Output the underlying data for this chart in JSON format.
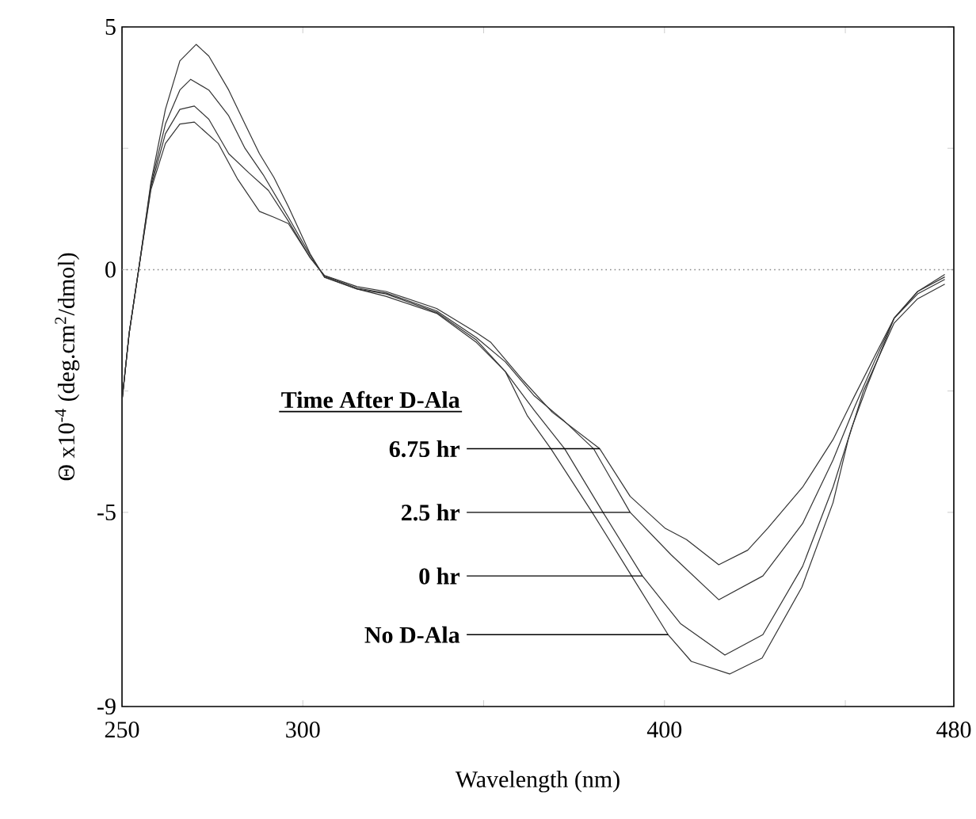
{
  "chart_data": {
    "type": "line",
    "xlabel": "Wavelength (nm)",
    "ylabel": "Θ x10$^{-4}$ (deg.cm$^{2}$/dmol)",
    "legend_title": "Time After D-Ala",
    "xlim": [
      250,
      480
    ],
    "ylim": [
      -9,
      5
    ],
    "xticks": [
      250,
      300,
      {
        "value": 350,
        "label": null
      },
      400,
      {
        "value": 450,
        "label": null
      },
      480
    ],
    "yticks": [
      5,
      {
        "value": 2.5,
        "label": null
      },
      0,
      {
        "value": -2.5,
        "label": null
      },
      -5,
      -9
    ],
    "grid": false,
    "marker": "none",
    "line_style": "solid",
    "ref_lines": [
      {
        "axis": "y",
        "value": 0,
        "color": "#888888",
        "line_style": "dotted"
      }
    ],
    "annotations": [
      {
        "text": "6.75  hr",
        "x": 382.1,
        "y": -3.69
      },
      {
        "text": "2.5  hr",
        "x": 390.5,
        "y": -5.0
      },
      {
        "text": "0  hr",
        "x": 393.9,
        "y": -6.31
      },
      {
        "text": "No  D-Ala",
        "x": 401,
        "y": -7.52
      }
    ],
    "series": [
      {
        "color": "#333333",
        "x": [
          250,
          252,
          254.6,
          258,
          262,
          266,
          270.5,
          274,
          279.5,
          284,
          288,
          292,
          296,
          302,
          306,
          315,
          323,
          337,
          348,
          356,
          362,
          368.6,
          380,
          390,
          401,
          407.4,
          418,
          427,
          438,
          446.6,
          450.8,
          455,
          463.5,
          470,
          477.5
        ],
        "values": [
          -2.7,
          -1.3,
          0,
          1.8,
          3.3,
          4.3,
          4.64,
          4.4,
          3.7,
          3.0,
          2.39,
          1.9,
          1.3,
          0.33,
          -0.16,
          -0.4,
          -0.55,
          -0.9,
          -1.5,
          -2.1,
          -3.0,
          -3.69,
          -5.0,
          -6.2,
          -7.52,
          -8.07,
          -8.33,
          -8.0,
          -6.54,
          -4.8,
          -3.5,
          -2.5,
          -1.1,
          -0.6,
          -0.3
        ]
      },
      {
        "color": "#333333",
        "x": [
          250,
          252,
          254.6,
          258,
          262,
          266,
          269,
          274,
          279.5,
          284,
          289,
          296,
          302,
          306,
          315,
          323,
          337,
          348,
          356,
          364,
          372.4,
          383,
          393.9,
          404.4,
          416.7,
          427.2,
          438.2,
          446.6,
          451.7,
          456,
          463.5,
          470,
          477.5
        ],
        "values": [
          -2.7,
          -1.3,
          0,
          1.75,
          3.0,
          3.7,
          3.92,
          3.7,
          3.17,
          2.5,
          1.96,
          1.08,
          0.3,
          -0.15,
          -0.4,
          -0.5,
          -0.88,
          -1.45,
          -2.1,
          -2.9,
          -3.69,
          -5.0,
          -6.31,
          -7.29,
          -7.94,
          -7.52,
          -6.11,
          -4.48,
          -3.27,
          -2.4,
          -1.0,
          -0.5,
          -0.2
        ]
      },
      {
        "color": "#333333",
        "x": [
          250,
          252,
          254.6,
          258,
          262,
          266,
          270,
          274,
          279.5,
          285,
          290.5,
          296,
          302,
          306,
          315,
          323,
          337,
          348,
          356,
          364,
          372,
          380.4,
          390.5,
          401.9,
          415,
          427.2,
          438.2,
          446.6,
          452.5,
          458,
          463.5,
          470,
          477.5
        ],
        "values": [
          -2.7,
          -1.3,
          0,
          1.7,
          2.8,
          3.3,
          3.37,
          3.1,
          2.39,
          2.0,
          1.63,
          1.0,
          0.25,
          -0.13,
          -0.38,
          -0.48,
          -0.85,
          -1.4,
          -1.9,
          -2.6,
          -3.1,
          -3.69,
          -5.0,
          -5.88,
          -6.8,
          -6.31,
          -5.23,
          -3.92,
          -2.84,
          -1.9,
          -1.0,
          -0.45,
          -0.15
        ]
      },
      {
        "color": "#333333",
        "x": [
          250,
          252,
          254.6,
          258,
          262,
          266,
          270,
          276.6,
          282,
          288,
          292,
          296,
          302,
          306,
          315,
          323,
          337,
          348,
          352,
          361,
          369,
          382.1,
          390.5,
          400.2,
          406.1,
          415,
          423,
          428.5,
          438.2,
          446.6,
          452.5,
          458,
          463.5,
          470,
          477.5
        ],
        "values": [
          -2.7,
          -1.3,
          0,
          1.65,
          2.6,
          3.0,
          3.04,
          2.6,
          1.86,
          1.2,
          1.08,
          0.95,
          0.25,
          -0.12,
          -0.35,
          -0.45,
          -0.8,
          -1.3,
          -1.5,
          -2.29,
          -2.94,
          -3.69,
          -4.67,
          -5.33,
          -5.56,
          -6.08,
          -5.78,
          -5.33,
          -4.48,
          -3.5,
          -2.61,
          -1.8,
          -1.0,
          -0.45,
          -0.1
        ]
      }
    ]
  }
}
